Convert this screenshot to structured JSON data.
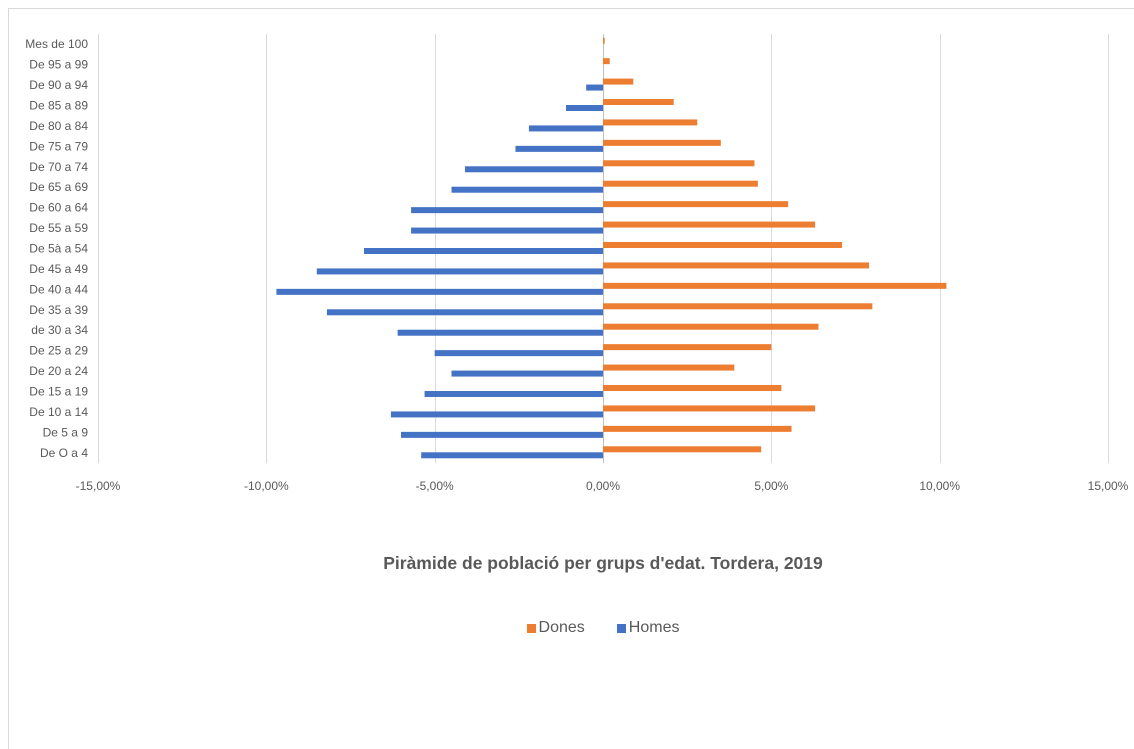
{
  "chart_data": {
    "type": "bar",
    "orientation": "horizontal",
    "title": "Piràmide de població per grups d'edat. Tordera, 2019",
    "xlabel": "",
    "ylabel": "",
    "categories": [
      "Mes de 100",
      "De 95 a 99",
      "De 90 a 94",
      "De 85 a 89",
      "De 80 a 84",
      "De 75 a 79",
      "De 70 a 74",
      "De 65 a 69",
      "De 60 a 64",
      "De 55 a 59",
      "De 5à a 54",
      "De 45 a 49",
      "De 40 a 44",
      "De 35 a 39",
      "de 30 a 34",
      "De 25 a 29",
      "De 20 a 24",
      "De 15 a 19",
      "De 10 a 14",
      "De 5 a 9",
      "De O a 4"
    ],
    "series": [
      {
        "name": "Dones",
        "color": "#ED7D31",
        "values": [
          0.05,
          0.2,
          0.9,
          2.1,
          2.8,
          3.5,
          4.5,
          4.6,
          5.5,
          6.3,
          7.1,
          7.9,
          10.2,
          8.0,
          6.4,
          5.0,
          3.9,
          5.3,
          6.3,
          5.6,
          4.7
        ]
      },
      {
        "name": "Homes",
        "color": "#4472C4",
        "values": [
          0,
          0,
          -0.5,
          -1.1,
          -2.2,
          -2.6,
          -4.1,
          -4.5,
          -5.7,
          -5.7,
          -7.1,
          -8.5,
          -9.7,
          -8.2,
          -6.1,
          -5.0,
          -4.5,
          -5.3,
          -6.3,
          -6.0,
          -5.4
        ]
      }
    ],
    "xlim": [
      -15,
      15
    ],
    "x_ticks": [
      -15,
      -10,
      -5,
      0,
      5,
      10,
      15
    ],
    "x_tick_labels": [
      "-15,00%",
      "-10,00%",
      "-5,00%",
      "0,00%",
      "5,00%",
      "10,00%",
      "15,00%"
    ],
    "grid": "x",
    "legend_position": "bottom"
  }
}
